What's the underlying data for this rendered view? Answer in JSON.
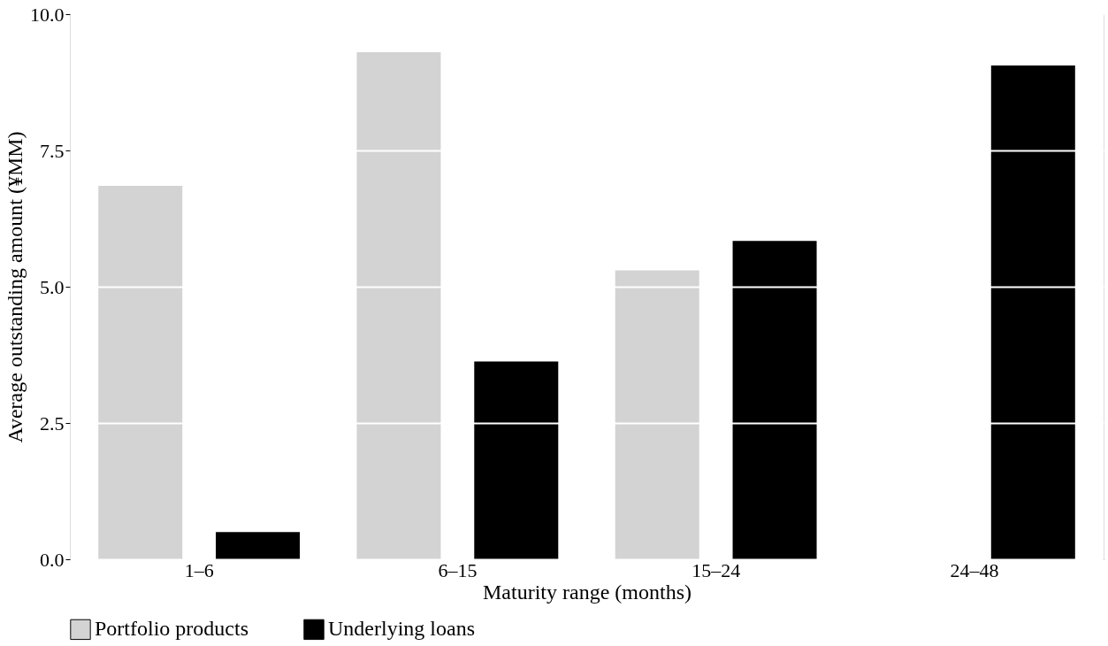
{
  "chart_data": {
    "type": "bar",
    "xlabel": "Maturity range (months)",
    "ylabel": "Average outstanding amount (¥MM)",
    "categories": [
      "1–6",
      "6–15",
      "15–24",
      "24–48"
    ],
    "series": [
      {
        "name": "Portfolio products",
        "color": "#d3d3d3",
        "values": [
          6.85,
          9.3,
          5.3,
          null
        ]
      },
      {
        "name": "Underlying loans",
        "color": "#000000",
        "values": [
          0.5,
          3.63,
          5.84,
          9.06
        ]
      }
    ],
    "ylim": [
      0,
      10
    ],
    "yticks": [
      {
        "value": 0,
        "label": "0.0"
      },
      {
        "value": 2.5,
        "label": "2.5"
      },
      {
        "value": 5,
        "label": "5.0"
      },
      {
        "value": 7.5,
        "label": "7.5"
      },
      {
        "value": 10,
        "label": "10.0"
      }
    ],
    "grid": "y",
    "legend": "bottom"
  }
}
